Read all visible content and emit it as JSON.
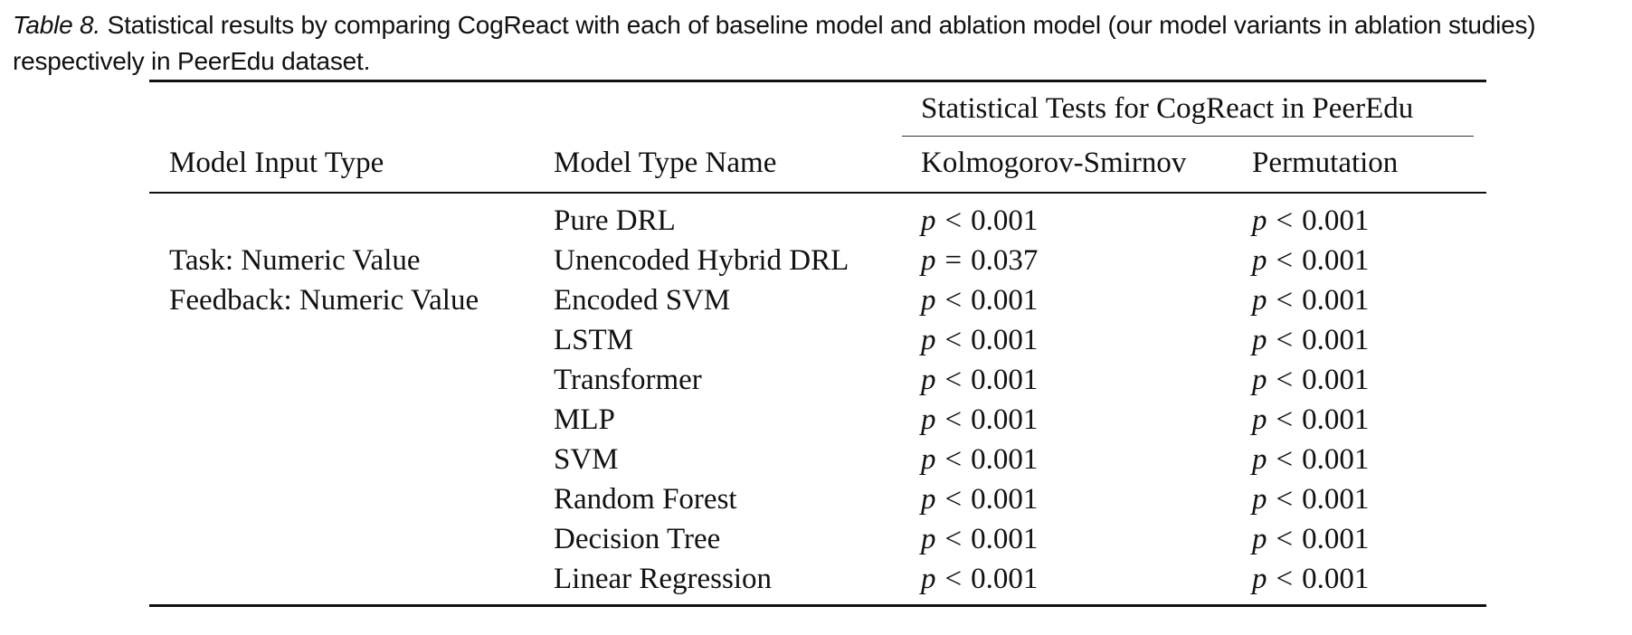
{
  "caption": {
    "label": "Table 8.",
    "text": " Statistical results by comparing CogReact with each of baseline model and ablation model (our model variants in ablation studies) respectively in PeerEdu dataset."
  },
  "table": {
    "group_header": "Statistical Tests for CogReact in PeerEdu",
    "columns": [
      "Model Input Type",
      "Model Type Name",
      "Kolmogorov-Smirnov",
      "Permutation"
    ],
    "input_type": {
      "line1": "Task: Numeric Value",
      "line2": "Feedback: Numeric Value"
    },
    "rows": [
      {
        "name": "Pure DRL",
        "ks": {
          "p": "p",
          "rel": "<",
          "val": "0.001"
        },
        "perm": {
          "p": "p",
          "rel": "<",
          "val": "0.001"
        }
      },
      {
        "name": "Unencoded Hybrid DRL",
        "ks": {
          "p": "p",
          "rel": "=",
          "val": "0.037"
        },
        "perm": {
          "p": "p",
          "rel": "<",
          "val": "0.001"
        }
      },
      {
        "name": "Encoded SVM",
        "ks": {
          "p": "p",
          "rel": "<",
          "val": "0.001"
        },
        "perm": {
          "p": "p",
          "rel": "<",
          "val": "0.001"
        }
      },
      {
        "name": "LSTM",
        "ks": {
          "p": "p",
          "rel": "<",
          "val": "0.001"
        },
        "perm": {
          "p": "p",
          "rel": "<",
          "val": "0.001"
        }
      },
      {
        "name": "Transformer",
        "ks": {
          "p": "p",
          "rel": "<",
          "val": "0.001"
        },
        "perm": {
          "p": "p",
          "rel": "<",
          "val": "0.001"
        }
      },
      {
        "name": "MLP",
        "ks": {
          "p": "p",
          "rel": "<",
          "val": "0.001"
        },
        "perm": {
          "p": "p",
          "rel": "<",
          "val": "0.001"
        }
      },
      {
        "name": "SVM",
        "ks": {
          "p": "p",
          "rel": "<",
          "val": "0.001"
        },
        "perm": {
          "p": "p",
          "rel": "<",
          "val": "0.001"
        }
      },
      {
        "name": "Random Forest",
        "ks": {
          "p": "p",
          "rel": "<",
          "val": "0.001"
        },
        "perm": {
          "p": "p",
          "rel": "<",
          "val": "0.001"
        }
      },
      {
        "name": "Decision Tree",
        "ks": {
          "p": "p",
          "rel": "<",
          "val": "0.001"
        },
        "perm": {
          "p": "p",
          "rel": "<",
          "val": "0.001"
        }
      },
      {
        "name": "Linear Regression",
        "ks": {
          "p": "p",
          "rel": "<",
          "val": "0.001"
        },
        "perm": {
          "p": "p",
          "rel": "<",
          "val": "0.001"
        }
      }
    ]
  }
}
